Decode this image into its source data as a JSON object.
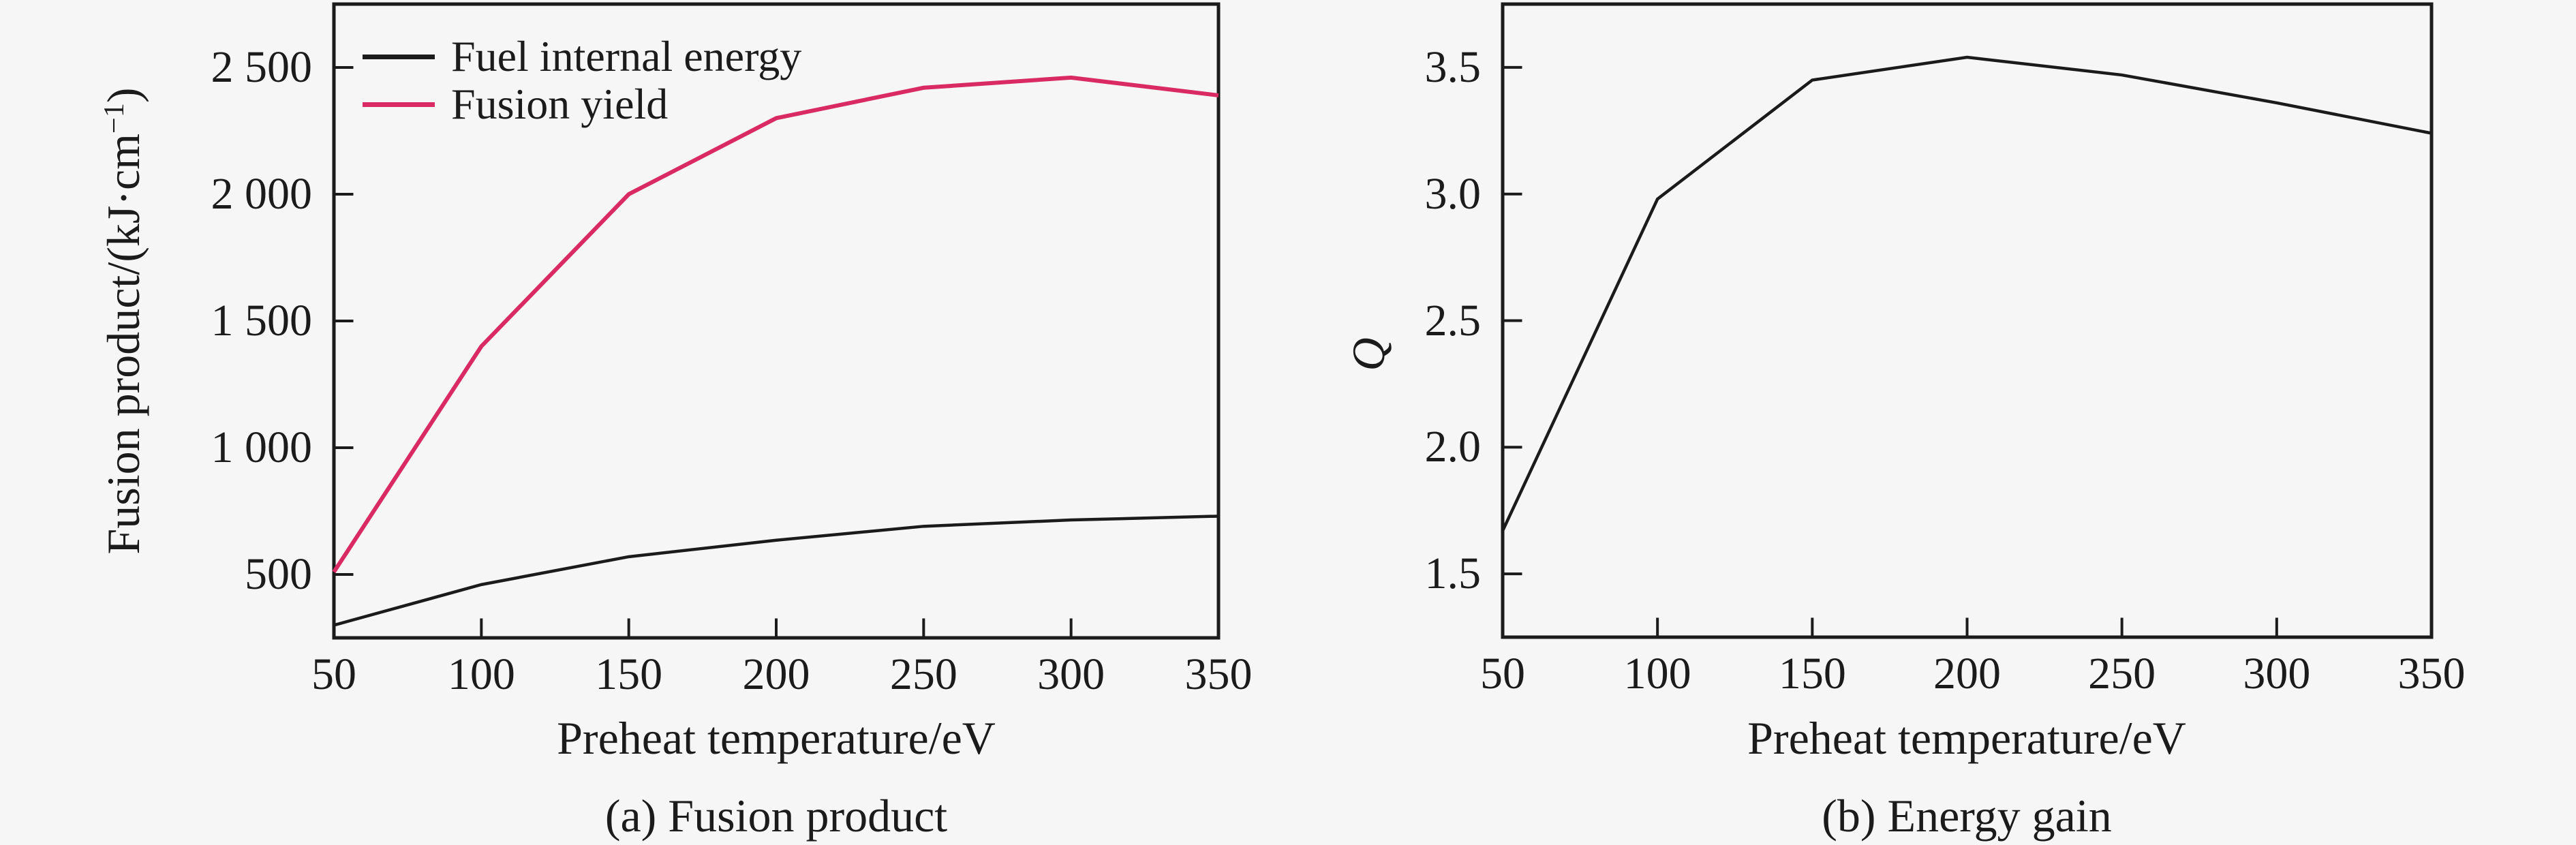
{
  "figure": {
    "background_color": "#f6f6f7",
    "ink_color": "#1b1b1b",
    "accent_color": "#d92a63"
  },
  "chart_data": [
    {
      "id": "a",
      "type": "line",
      "title": "(a) Fusion product",
      "xlabel": "Preheat temperature/eV",
      "ylabel": "Fusion product/(kJ·cm⁻¹)",
      "ylabel_parts": {
        "prefix": "Fusion product/(kJ·cm",
        "sup": "−1",
        "suffix": ")"
      },
      "x": [
        50,
        100,
        150,
        200,
        250,
        300,
        350
      ],
      "series": [
        {
          "name": "Fuel internal energy",
          "color": "#1b1b1b",
          "width": 4.5,
          "values": [
            300,
            460,
            570,
            635,
            690,
            715,
            730
          ]
        },
        {
          "name": "Fusion yield",
          "color": "#d92a63",
          "width": 6,
          "values": [
            510,
            1400,
            2000,
            2300,
            2420,
            2460,
            2390
          ]
        }
      ],
      "xlim": [
        50,
        350
      ],
      "ylim": [
        250,
        2750
      ],
      "xticks": [
        100,
        150,
        200,
        250,
        300
      ],
      "xtick_values": [
        50,
        100,
        150,
        200,
        250,
        300,
        350
      ],
      "xtick_labels": [
        "50",
        "100",
        "150",
        "200",
        "250",
        "300",
        "350"
      ],
      "yticks": [
        500,
        1000,
        1500,
        2000,
        2500
      ],
      "ytick_labels": [
        "500",
        "1 000",
        "1 500",
        "2 000",
        "2 500"
      ],
      "grid": false,
      "legend_position": "top-left"
    },
    {
      "id": "b",
      "type": "line",
      "title": "(b) Energy gain",
      "xlabel": "Preheat temperature/eV",
      "ylabel": "Q",
      "x": [
        50,
        100,
        150,
        200,
        250,
        300,
        350
      ],
      "series": [
        {
          "name": "Q",
          "color": "#1b1b1b",
          "width": 4.5,
          "values": [
            1.67,
            2.98,
            3.45,
            3.54,
            3.47,
            3.36,
            3.24
          ]
        }
      ],
      "xlim": [
        50,
        350
      ],
      "ylim": [
        1.25,
        3.75
      ],
      "xticks": [
        100,
        150,
        200,
        250,
        300
      ],
      "xtick_values": [
        50,
        100,
        150,
        200,
        250,
        300,
        350
      ],
      "xtick_labels": [
        "50",
        "100",
        "150",
        "200",
        "250",
        "300",
        "350"
      ],
      "yticks": [
        1.5,
        2.0,
        2.5,
        3.0,
        3.5
      ],
      "ytick_labels": [
        "1.5",
        "2.0",
        "2.5",
        "3.0",
        "3.5"
      ],
      "grid": false,
      "legend_position": "none"
    }
  ]
}
